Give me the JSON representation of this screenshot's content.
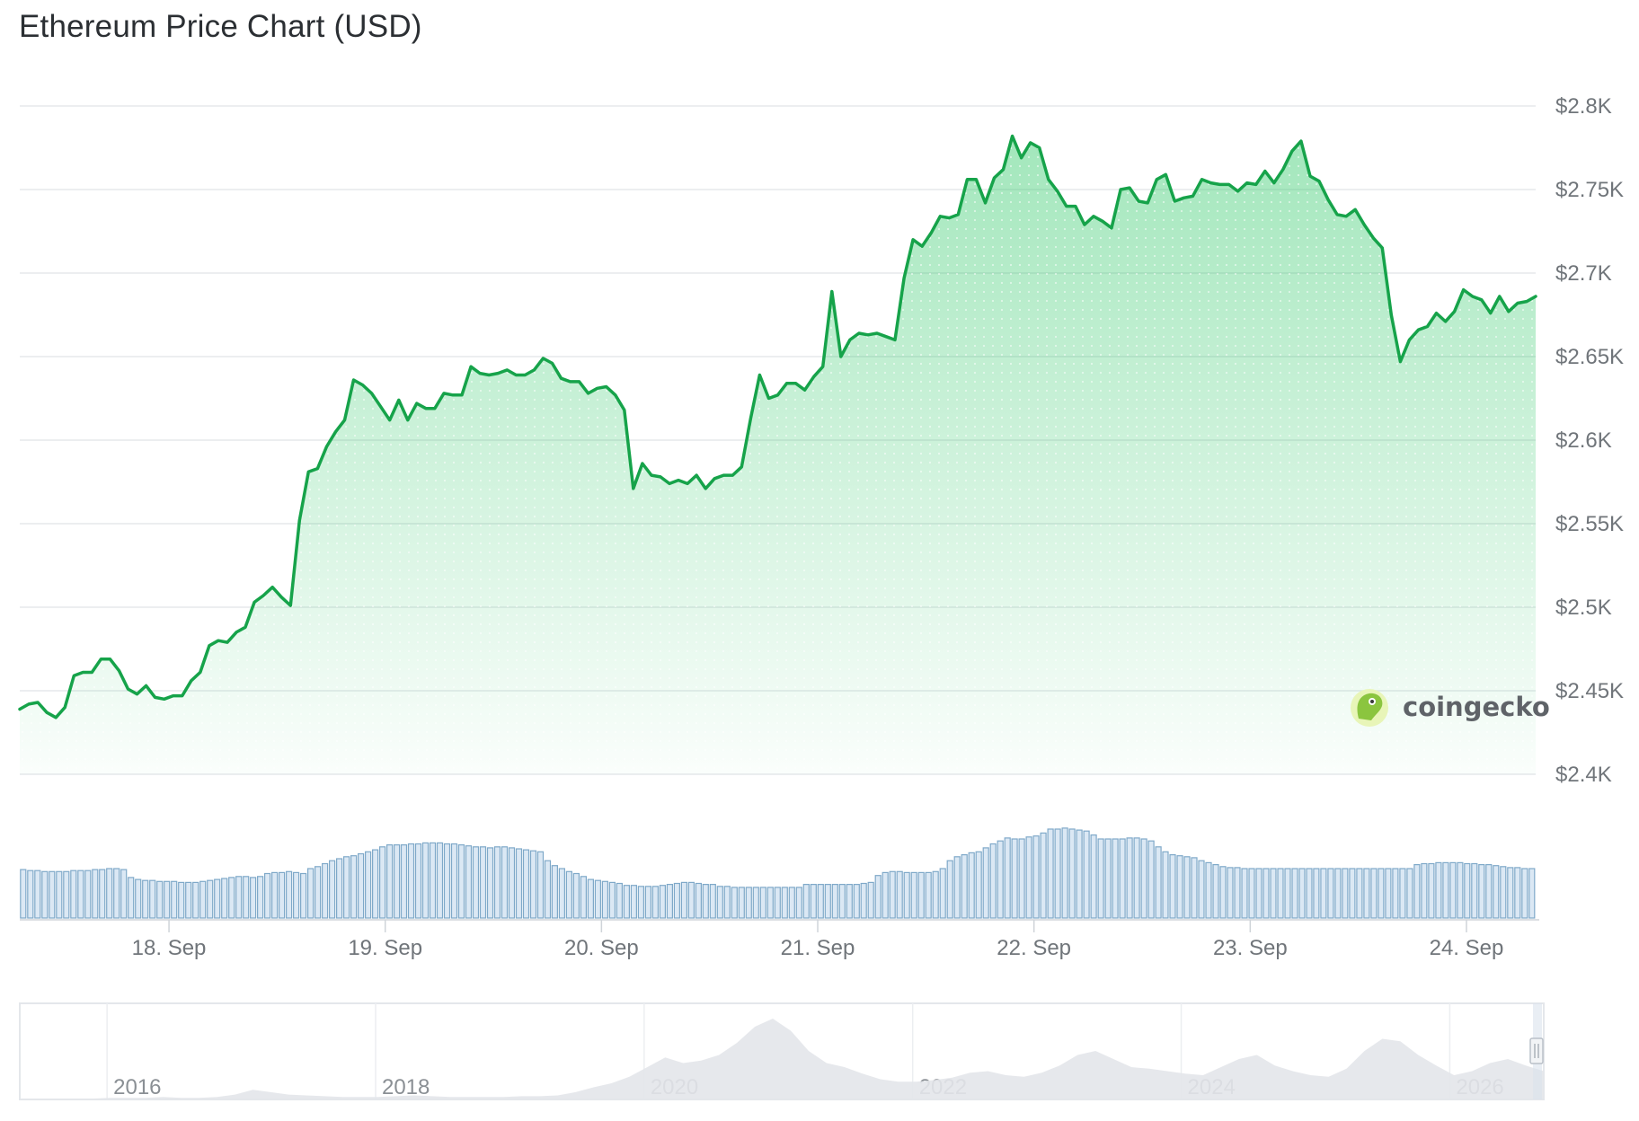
{
  "title": "Ethereum Price Chart (USD)",
  "colors": {
    "line": "#16a34a",
    "fill": "#22c55e",
    "volume": "#7fa9c9",
    "grid": "#e6e8eb",
    "navigator": "#e3e6ea"
  },
  "watermark": {
    "text": "coingecko",
    "icon": "coingecko-logo-icon"
  },
  "chart_data": {
    "type": "line",
    "title": "Ethereum Price Chart (USD)",
    "ylim": [
      2400,
      2800
    ],
    "y_ticks": [
      2400,
      2450,
      2500,
      2550,
      2600,
      2650,
      2700,
      2750,
      2800
    ],
    "y_tick_labels": [
      "$2.4K",
      "$2.45K",
      "$2.5K",
      "$2.55K",
      "$2.6K",
      "$2.65K",
      "$2.7K",
      "$2.75K",
      "$2.8K"
    ],
    "x_start_day": 17.31,
    "x_end_day": 24.32,
    "x_ticks": [
      18,
      19,
      20,
      21,
      22,
      23,
      24
    ],
    "x_tick_labels": [
      "18. Sep",
      "19. Sep",
      "20. Sep",
      "21. Sep",
      "22. Sep",
      "23. Sep",
      "24. Sep"
    ],
    "grid": true,
    "series": [
      {
        "values": [
          2439,
          2442,
          2443,
          2437,
          2434,
          2440,
          2459,
          2461,
          2461,
          2469,
          2469,
          2462,
          2451,
          2448,
          2453,
          2446,
          2445,
          2447,
          2447,
          2456,
          2461,
          2477,
          2480,
          2479,
          2485,
          2488,
          2503,
          2507,
          2512,
          2506,
          2501,
          2552,
          2581,
          2583,
          2596,
          2605,
          2612,
          2636,
          2633,
          2628,
          2620,
          2612,
          2624,
          2612,
          2622,
          2619,
          2619,
          2628,
          2627,
          2627,
          2644,
          2640,
          2639,
          2640,
          2642,
          2639,
          2639,
          2642,
          2649,
          2646,
          2637,
          2635,
          2635,
          2628,
          2631,
          2632,
          2627,
          2618,
          2571,
          2586,
          2579,
          2578,
          2574,
          2576,
          2574,
          2579,
          2571,
          2577,
          2579,
          2579,
          2584,
          2613,
          2639,
          2625,
          2627,
          2634,
          2634,
          2630,
          2638,
          2644,
          2689,
          2650,
          2660,
          2664,
          2663,
          2664,
          2662,
          2660,
          2697,
          2720,
          2716,
          2724,
          2734,
          2733,
          2735,
          2756,
          2756,
          2742,
          2757,
          2762,
          2782,
          2769,
          2778,
          2775,
          2756,
          2749,
          2740,
          2740,
          2729,
          2734,
          2731,
          2727,
          2750,
          2751,
          2743,
          2742,
          2756,
          2759,
          2743,
          2745,
          2746,
          2756,
          2754,
          2753,
          2753,
          2749,
          2754,
          2753,
          2761,
          2754,
          2762,
          2773,
          2779,
          2758,
          2755,
          2744,
          2735,
          2734,
          2738,
          2729,
          2721,
          2715,
          2675,
          2647,
          2660,
          2666,
          2668,
          2676,
          2671,
          2677,
          2690,
          2686,
          2684,
          2676,
          2686,
          2677,
          2682,
          2683,
          2686
        ]
      }
    ],
    "volume": [
      0.49,
      0.48,
      0.48,
      0.47,
      0.47,
      0.47,
      0.47,
      0.48,
      0.48,
      0.48,
      0.49,
      0.49,
      0.5,
      0.5,
      0.49,
      0.41,
      0.39,
      0.38,
      0.38,
      0.37,
      0.37,
      0.37,
      0.36,
      0.36,
      0.36,
      0.37,
      0.38,
      0.39,
      0.4,
      0.41,
      0.42,
      0.42,
      0.41,
      0.42,
      0.45,
      0.46,
      0.46,
      0.47,
      0.46,
      0.45,
      0.5,
      0.52,
      0.55,
      0.58,
      0.6,
      0.62,
      0.63,
      0.65,
      0.67,
      0.69,
      0.72,
      0.74,
      0.74,
      0.74,
      0.75,
      0.75,
      0.76,
      0.76,
      0.76,
      0.75,
      0.75,
      0.74,
      0.73,
      0.72,
      0.72,
      0.71,
      0.72,
      0.72,
      0.71,
      0.7,
      0.69,
      0.68,
      0.67,
      0.58,
      0.53,
      0.5,
      0.47,
      0.45,
      0.42,
      0.39,
      0.38,
      0.37,
      0.36,
      0.35,
      0.33,
      0.33,
      0.32,
      0.32,
      0.32,
      0.33,
      0.34,
      0.35,
      0.36,
      0.36,
      0.35,
      0.34,
      0.34,
      0.32,
      0.32,
      0.31,
      0.31,
      0.31,
      0.31,
      0.31,
      0.31,
      0.31,
      0.31,
      0.31,
      0.31,
      0.34,
      0.34,
      0.34,
      0.34,
      0.34,
      0.34,
      0.34,
      0.34,
      0.35,
      0.36,
      0.43,
      0.46,
      0.47,
      0.47,
      0.46,
      0.46,
      0.46,
      0.46,
      0.47,
      0.5,
      0.58,
      0.62,
      0.64,
      0.66,
      0.67,
      0.71,
      0.75,
      0.78,
      0.81,
      0.8,
      0.8,
      0.82,
      0.83,
      0.86,
      0.9,
      0.9,
      0.91,
      0.9,
      0.89,
      0.88,
      0.84,
      0.8,
      0.8,
      0.8,
      0.8,
      0.81,
      0.81,
      0.8,
      0.78,
      0.72,
      0.67,
      0.64,
      0.63,
      0.62,
      0.61,
      0.58,
      0.56,
      0.54,
      0.52,
      0.51,
      0.51,
      0.5,
      0.5,
      0.5,
      0.5,
      0.5,
      0.5,
      0.5,
      0.5,
      0.5,
      0.5,
      0.5,
      0.5,
      0.5,
      0.5,
      0.5,
      0.5,
      0.5,
      0.5,
      0.5,
      0.5,
      0.5,
      0.5,
      0.5,
      0.5,
      0.54,
      0.55,
      0.55,
      0.56,
      0.56,
      0.56,
      0.56,
      0.55,
      0.55,
      0.54,
      0.54,
      0.53,
      0.52,
      0.51,
      0.51,
      0.5,
      0.5
    ],
    "navigator": {
      "year_labels": [
        "2016",
        "2018",
        "2020",
        "2022",
        "2024",
        "2026"
      ],
      "relative_prices": [
        0.01,
        0.01,
        0.01,
        0.01,
        0.01,
        0.02,
        0.02,
        0.02,
        0.03,
        0.02,
        0.02,
        0.03,
        0.06,
        0.12,
        0.09,
        0.06,
        0.05,
        0.04,
        0.03,
        0.03,
        0.03,
        0.04,
        0.05,
        0.04,
        0.03,
        0.03,
        0.03,
        0.03,
        0.04,
        0.04,
        0.05,
        0.09,
        0.15,
        0.2,
        0.28,
        0.4,
        0.52,
        0.45,
        0.48,
        0.55,
        0.7,
        0.9,
        1.0,
        0.85,
        0.6,
        0.45,
        0.4,
        0.32,
        0.25,
        0.22,
        0.22,
        0.24,
        0.27,
        0.33,
        0.35,
        0.3,
        0.28,
        0.33,
        0.42,
        0.55,
        0.6,
        0.5,
        0.4,
        0.38,
        0.35,
        0.32,
        0.3,
        0.4,
        0.5,
        0.55,
        0.42,
        0.35,
        0.3,
        0.28,
        0.38,
        0.6,
        0.75,
        0.72,
        0.55,
        0.42,
        0.3,
        0.35,
        0.45,
        0.5,
        0.42,
        0.35
      ]
    }
  }
}
